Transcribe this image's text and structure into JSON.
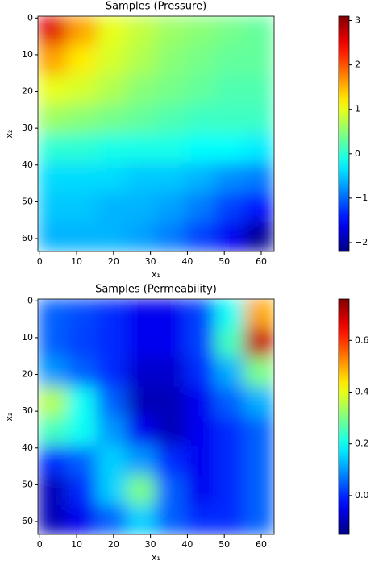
{
  "chart_data": [
    {
      "type": "heatmap",
      "title": "Samples (Pressure)",
      "xlabel": "x₁",
      "ylabel": "x₂",
      "colormap": "jet",
      "xlim": [
        -0.5,
        63.5
      ],
      "ylim": [
        63.5,
        -0.5
      ],
      "xticks": [
        0,
        10,
        20,
        30,
        40,
        50,
        60
      ],
      "yticks": [
        0,
        10,
        20,
        30,
        40,
        50,
        60
      ],
      "clim": [
        -2.2,
        3.1
      ],
      "cticks": [
        {
          "value": -2,
          "label": "−2"
        },
        {
          "value": -1,
          "label": "−1"
        },
        0,
        1,
        2,
        3
      ],
      "values": [
        [
          2.6,
          1.6,
          1.0,
          0.8,
          0.6,
          0.5,
          0.4,
          0.3
        ],
        [
          1.6,
          1.2,
          0.9,
          0.7,
          0.5,
          0.4,
          0.3,
          0.3
        ],
        [
          1.0,
          0.9,
          0.7,
          0.5,
          0.4,
          0.3,
          0.2,
          0.2
        ],
        [
          0.6,
          0.5,
          0.4,
          0.3,
          0.2,
          0.1,
          0.1,
          0.1
        ],
        [
          0.0,
          0.0,
          -0.1,
          -0.1,
          -0.1,
          -0.2,
          -0.2,
          -0.3
        ],
        [
          -0.4,
          -0.4,
          -0.4,
          -0.5,
          -0.5,
          -0.6,
          -0.8,
          -0.9
        ],
        [
          -0.5,
          -0.5,
          -0.6,
          -0.6,
          -0.7,
          -0.9,
          -1.2,
          -1.5
        ],
        [
          -0.6,
          -0.6,
          -0.6,
          -0.7,
          -0.9,
          -1.2,
          -1.6,
          -2.1
        ]
      ]
    },
    {
      "type": "heatmap",
      "title": "Samples (Permeability)",
      "xlabel": "x₁",
      "ylabel": "x₂",
      "colormap": "jet",
      "xlim": [
        -0.5,
        63.5
      ],
      "ylim": [
        63.5,
        -0.5
      ],
      "xticks": [
        0,
        10,
        20,
        30,
        40,
        50,
        60
      ],
      "yticks": [
        0,
        10,
        20,
        30,
        40,
        50,
        60
      ],
      "clim": [
        -0.15,
        0.76
      ],
      "cticks": [
        {
          "value": 0,
          "label": "0.0"
        },
        0.2,
        0.4,
        0.6
      ],
      "values": [
        [
          0.05,
          0.03,
          0.0,
          -0.05,
          -0.05,
          0.02,
          0.2,
          0.5
        ],
        [
          0.05,
          0.02,
          0.0,
          -0.05,
          -0.05,
          0.02,
          0.25,
          0.7
        ],
        [
          0.1,
          0.05,
          0.0,
          -0.08,
          -0.08,
          0.0,
          0.12,
          0.3
        ],
        [
          0.35,
          0.2,
          0.05,
          -0.1,
          -0.1,
          -0.05,
          0.05,
          0.12
        ],
        [
          0.25,
          0.2,
          0.1,
          -0.05,
          -0.1,
          -0.05,
          0.0,
          0.05
        ],
        [
          0.0,
          0.05,
          0.15,
          0.1,
          0.0,
          -0.05,
          0.0,
          0.05
        ],
        [
          -0.1,
          0.0,
          0.15,
          0.3,
          0.05,
          -0.05,
          0.0,
          0.05
        ],
        [
          -0.1,
          -0.05,
          0.05,
          0.15,
          0.05,
          0.0,
          0.0,
          0.05
        ]
      ]
    }
  ]
}
